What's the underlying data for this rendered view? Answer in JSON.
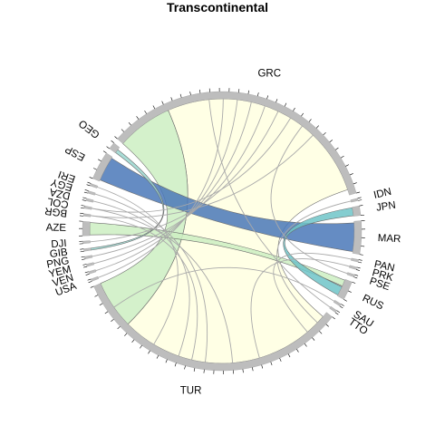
{
  "title": "Transcontinental",
  "colors": {
    "track": "#bdbdbd",
    "big_pale_yellow": "#ffffe0",
    "pale_green": "#cdeec2",
    "blue": "#4a78b8",
    "teal": "#6ec4c8",
    "aqua": "#9ad6cf",
    "thin_link": "#a9a9a9"
  },
  "sectors": [
    {
      "name": "AZE",
      "size": 3
    },
    {
      "name": "DJI",
      "size": 0.5
    },
    {
      "name": "GIB",
      "size": 0.5
    },
    {
      "name": "PNG",
      "size": 0.5
    },
    {
      "name": "YEM",
      "size": 0.5
    },
    {
      "name": "VEN",
      "size": 0.5
    },
    {
      "name": "USA",
      "size": 0.5
    },
    {
      "name": "TUR",
      "size": 60
    },
    {
      "name": "TTO",
      "size": 0.5
    },
    {
      "name": "SAU",
      "size": 0.5
    },
    {
      "name": "RUS",
      "size": 4
    },
    {
      "name": "PSE",
      "size": 0.5
    },
    {
      "name": "PRK",
      "size": 0.5
    },
    {
      "name": "PAN",
      "size": 0.5
    },
    {
      "name": "MAR",
      "size": 7
    },
    {
      "name": "JPN",
      "size": 2
    },
    {
      "name": "IDN",
      "size": 0.5
    },
    {
      "name": "GRC",
      "size": 62
    },
    {
      "name": "GEO",
      "size": 1.5
    },
    {
      "name": "ESP",
      "size": 6
    },
    {
      "name": "ERI",
      "size": 0.5
    },
    {
      "name": "EGY",
      "size": 0.5
    },
    {
      "name": "DZA",
      "size": 0.5
    },
    {
      "name": "COL",
      "size": 0.5
    },
    {
      "name": "BGR",
      "size": 0.5
    }
  ]
}
